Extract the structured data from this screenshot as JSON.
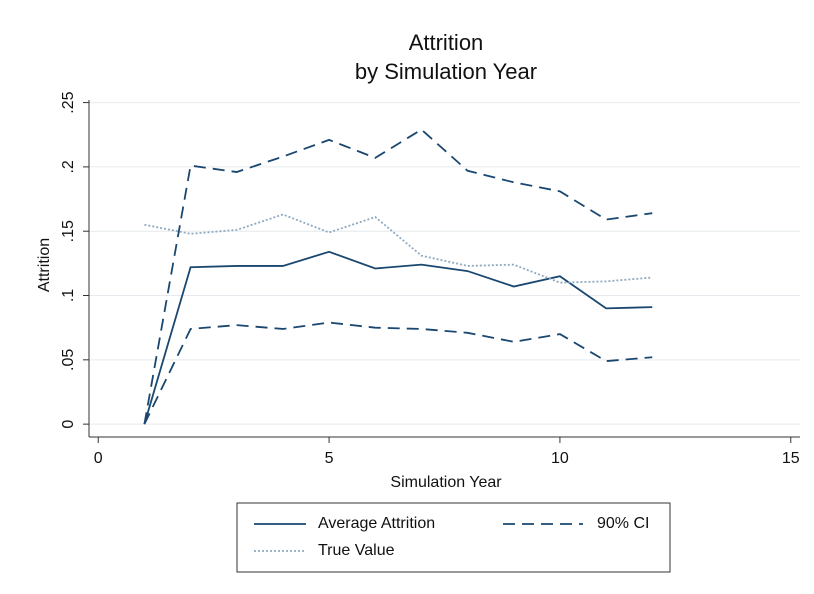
{
  "chart_data": {
    "type": "line",
    "title": "Attrition",
    "subtitle": "by Simulation Year",
    "x_label": "Simulation Year",
    "y_label": "Attrition",
    "x": [
      1,
      2,
      3,
      4,
      5,
      6,
      7,
      8,
      9,
      10,
      11,
      12
    ],
    "series": [
      {
        "name": "Average Attrition",
        "color": "#1a476f",
        "dash": "solid",
        "values": [
          0,
          0.122,
          0.123,
          0.123,
          0.134,
          0.121,
          0.124,
          0.119,
          0.107,
          0.115,
          0.09,
          0.091
        ]
      },
      {
        "name": "90% CI",
        "color": "#1a476f",
        "dash": "dashed",
        "values": [
          0,
          0.201,
          0.196,
          0.208,
          0.221,
          0.207,
          0.229,
          0.197,
          0.188,
          0.181,
          0.159,
          0.164
        ],
        "lower": [
          0,
          0.074,
          0.077,
          0.074,
          0.079,
          0.075,
          0.074,
          0.071,
          0.064,
          0.07,
          0.049,
          0.052
        ]
      },
      {
        "name": "True Value",
        "color": "#8fa9c0",
        "dash": "dotted",
        "values": [
          0.155,
          0.148,
          0.151,
          0.163,
          0.149,
          0.161,
          0.131,
          0.123,
          0.124,
          0.11,
          0.111,
          0.114
        ]
      }
    ],
    "xlim": [
      -0.2,
      15.2
    ],
    "xticks": [
      0,
      5,
      10,
      15
    ],
    "ylim": [
      -0.01,
      0.252
    ],
    "yticks": [
      0,
      {
        "value": 0.05,
        "label": ".05"
      },
      {
        "value": 0.1,
        "label": ".1"
      },
      {
        "value": 0.15,
        "label": ".15"
      },
      {
        "value": 0.2,
        "label": ".2"
      },
      {
        "value": 0.25,
        "label": ".25"
      }
    ],
    "grid": true,
    "legend": "bottom"
  }
}
